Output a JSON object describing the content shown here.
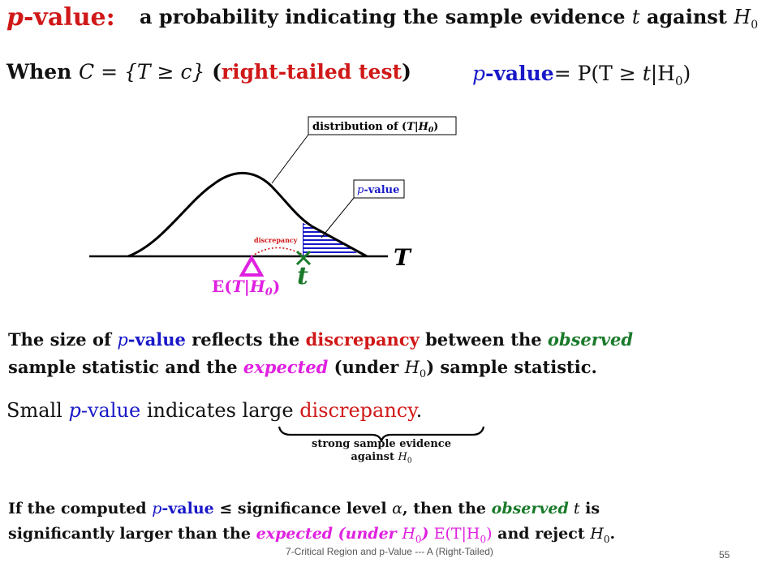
{
  "header": {
    "title_p": "p",
    "title_rest": "-value:",
    "desc_pre": "a probability indicating the sample evidence ",
    "desc_t": "t",
    "desc_post": " against ",
    "desc_h": "H",
    "desc_sub": "0"
  },
  "when": {
    "when": "When ",
    "set_expr": "C = {T ≥ c}",
    "paren_open": " (",
    "label": "right-tailed test",
    "paren_close": ")"
  },
  "pvalue_formula": {
    "p": "p",
    "value": "-value",
    "eq": "= P(T ≥ ",
    "t": "t",
    "given": "|H",
    "sub": "0",
    "close": ")"
  },
  "diagram": {
    "dist_label_pre": "distribution of (",
    "dist_label_mid": "T|H",
    "dist_label_sub": "0",
    "dist_label_post": ")",
    "pvalue_label_p": "p",
    "pvalue_label_rest": "-value",
    "discrepancy_label": "discrepancy",
    "axis_label": "T",
    "t_label": "t",
    "expected_label_pre": "E(",
    "expected_label_mid": "T|H",
    "expected_label_sub": "0",
    "expected_label_post": ")"
  },
  "statement1": {
    "s1": "The size of ",
    "p": "p",
    "pv": "-value",
    "s2": " reflects the ",
    "discrepancy": "discrepancy",
    "s3": " between the ",
    "observed": "observed",
    "s4": "sample statistic and the ",
    "expected": "expected",
    "s5": " (under ",
    "h": "H",
    "sub": "0",
    "s6": ") sample statistic."
  },
  "statement2": {
    "small": "Small ",
    "p": "p",
    "pv": "-value",
    "indicates": " indicates ",
    "large": "large ",
    "discrepancy": "discrepancy",
    "period": "."
  },
  "brace_label": {
    "line1": "strong sample evidence",
    "line2_pre": "against ",
    "h": "H",
    "sub": "0"
  },
  "statement3": {
    "s1": "If the computed ",
    "p": "p",
    "pv": "-value",
    "s2": " ≤ significance level ",
    "alpha": "α",
    "s3": ", then the ",
    "observed": "observed",
    "t": " t",
    "s4": " is",
    "s5": "significantly larger than the ",
    "expected": "expected (under ",
    "h": "H",
    "sub": "0",
    "close": ")",
    "e_expr": " E(T|H",
    "e_sub": "0",
    "e_close": ")",
    "s6": " and reject ",
    "h2": "H",
    "sub2": "0",
    "period": "."
  },
  "footer": {
    "center": "7-Critical Region and p-Value --- A (Right-Tailed)",
    "page": "55"
  },
  "colors": {
    "red": "#d01818",
    "blue": "#1818c8",
    "green": "#1a7a2a",
    "magenta": "#e020e0"
  }
}
